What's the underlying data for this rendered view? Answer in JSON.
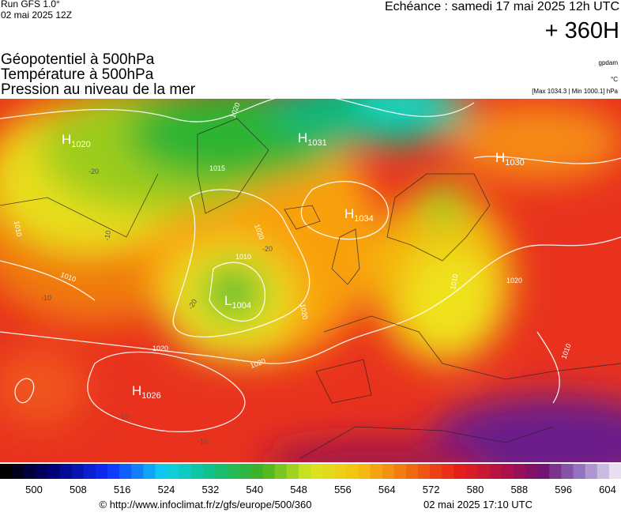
{
  "header": {
    "run": "Run GFS 1.0°",
    "run_date": "02 mai 2025 12Z",
    "valid": "Echéance : samedi 17 mai 2025 12h UTC",
    "lead": "+ 360H"
  },
  "layers": [
    "Géopotentiel à 500hPa",
    "Température à 500hPa",
    "Pression au niveau de la mer"
  ],
  "units": {
    "geopotential": "gpdam",
    "temperature": "°C",
    "pressure": "[Max 1034.3 | Min 1000.1] hPa"
  },
  "pressure_centers": [
    {
      "letter": "H",
      "value": 1020
    },
    {
      "letter": "H",
      "value": 1031
    },
    {
      "letter": "H",
      "value": 1030
    },
    {
      "letter": "H",
      "value": 1034
    },
    {
      "letter": "L",
      "value": 1004
    },
    {
      "letter": "H",
      "value": 1026
    }
  ],
  "isobar_labels": [
    1020,
    1015,
    1020,
    1010,
    1020,
    1020,
    1020,
    1010,
    1020,
    1010,
    1010,
    1010
  ],
  "isotherm_labels": [
    -20,
    -20,
    -10,
    -20,
    -10,
    -10,
    -10
  ],
  "colorbar": {
    "ticks": [
      500,
      508,
      516,
      524,
      532,
      540,
      548,
      556,
      564,
      572,
      580,
      588,
      596,
      604
    ]
  },
  "footer": {
    "source": "© http://www.infoclimat.fr/z/gfs/europe/500/360",
    "generated": "02 mai 2025 17:10 UTC"
  }
}
